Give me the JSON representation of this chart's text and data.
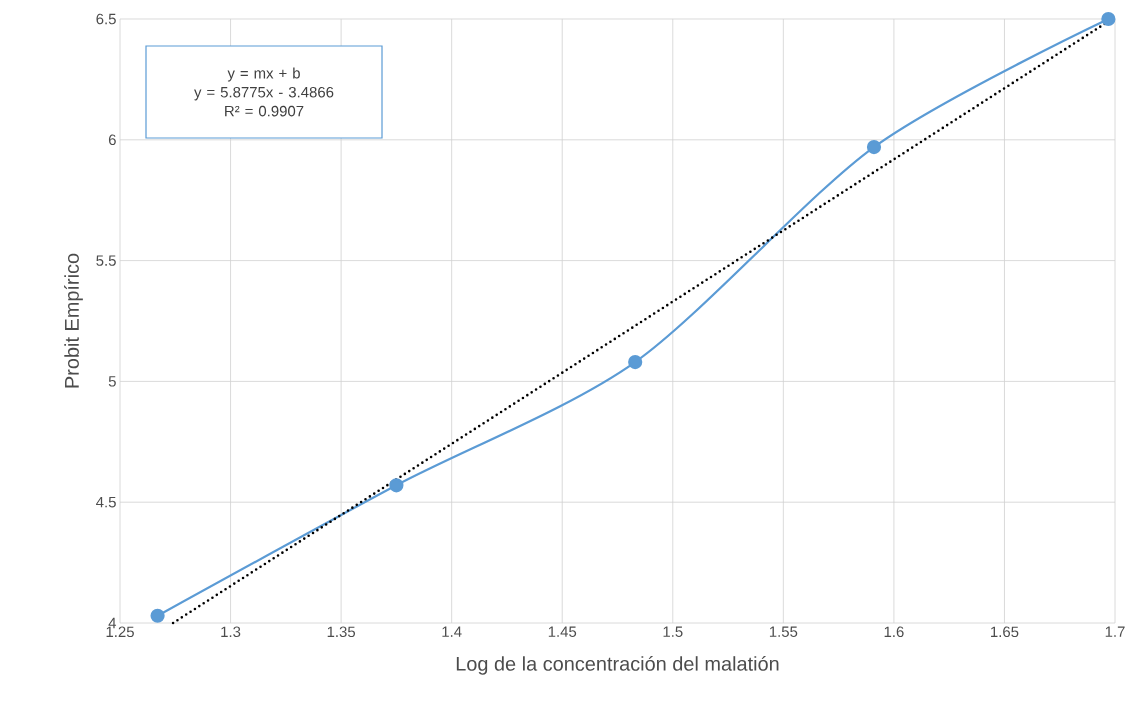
{
  "chart_data": {
    "type": "line",
    "xlabel": "Log de la concentración del malatión",
    "ylabel": "Probit Empírico",
    "annotations": [
      "y = mx + b",
      "y = 5.8775x - 3.4866",
      "R² = 0.9907"
    ],
    "series": [
      {
        "color": "#5b9bd5",
        "x": [
          1.267,
          1.375,
          1.483,
          1.591,
          1.697
        ],
        "values": [
          4.03,
          4.57,
          5.08,
          5.97,
          6.5
        ]
      },
      {
        "color": "#000000",
        "x": [
          1.274,
          1.697
        ],
        "values": [
          4.0,
          6.49
        ],
        "marker": "none",
        "line_style": "dotted"
      }
    ],
    "marker": "circle",
    "grid": true,
    "xlim": [
      1.25,
      1.7
    ],
    "xticks": [
      1.25,
      1.3,
      1.35,
      1.4,
      1.45,
      1.5,
      1.55,
      1.6,
      1.65,
      1.7
    ],
    "ylim": [
      4,
      6.5
    ],
    "yticks": [
      4,
      4.5,
      5,
      5.5,
      6,
      6.5
    ]
  }
}
